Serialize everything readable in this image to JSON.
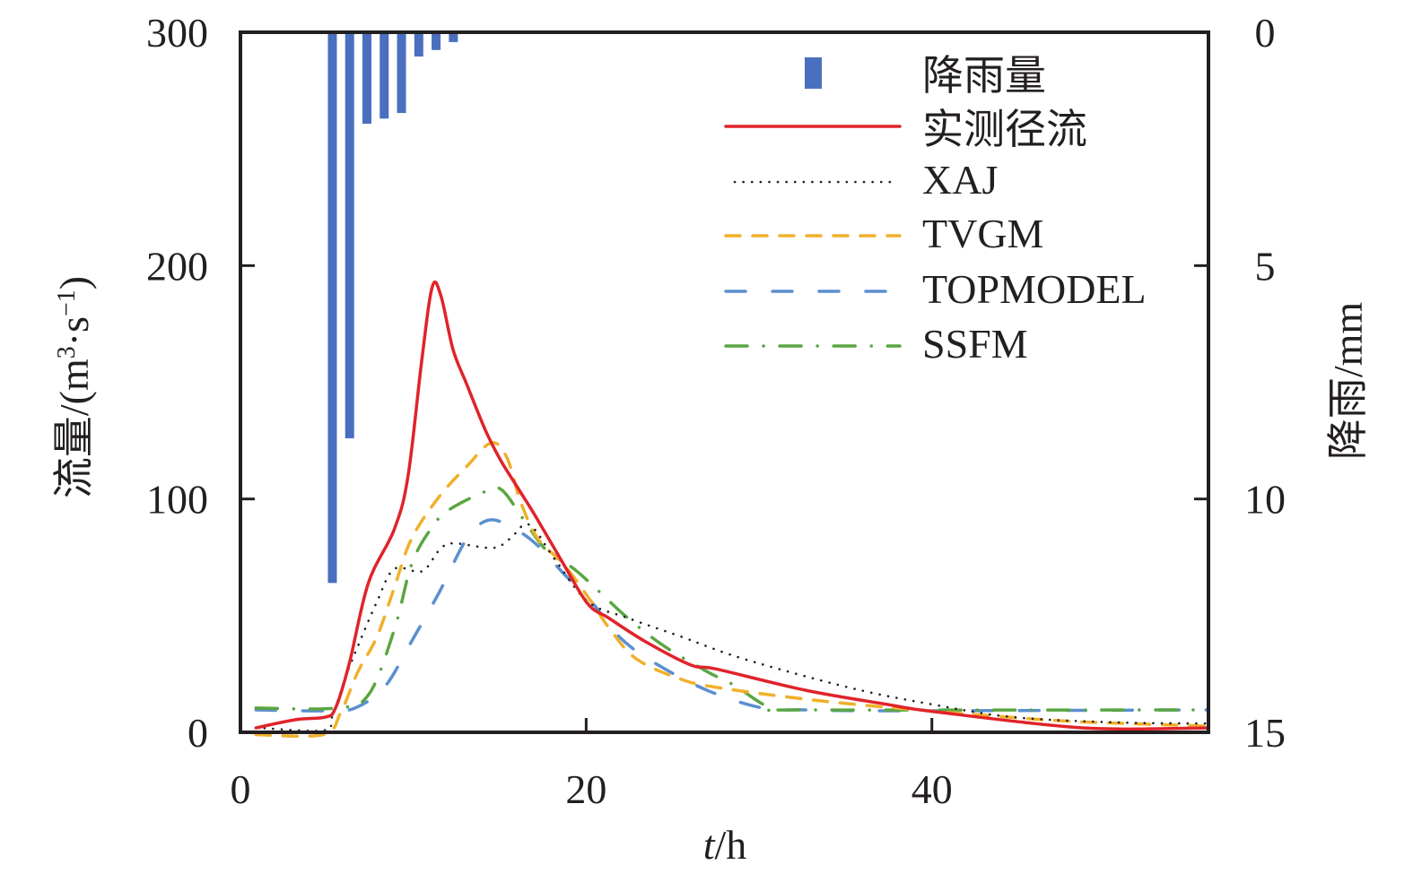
{
  "chart_data": {
    "type": "line",
    "title": "",
    "xlabel": "t/h",
    "xlabel_italic_part": "t",
    "xlabel_rest": "/h",
    "ylabel": "流量/(m3·s−1)",
    "ylabel_text": "流量/(m",
    "ylabel_sup1": "3",
    "ylabel_mid": "·s",
    "ylabel_sup2": "−1",
    "ylabel_close": ")",
    "y2label": "降雨/mm",
    "xlim": [
      0,
      56
    ],
    "ylim": [
      0,
      300
    ],
    "y2lim": [
      0,
      15
    ],
    "y2_inverted": true,
    "xticks": [
      "0",
      "20",
      "40"
    ],
    "xtick_values": [
      0,
      20,
      40
    ],
    "yticks": [
      "0",
      "100",
      "200",
      "300"
    ],
    "ytick_values": [
      0,
      100,
      200,
      300
    ],
    "y2ticks": [
      "0",
      "5",
      "10",
      "15"
    ],
    "y2tick_values": [
      0,
      5,
      10,
      15
    ],
    "grid": false,
    "legend_position": "top-right",
    "rainfall": {
      "name": "降雨量",
      "color": "#4a6fbf",
      "x": [
        5.5,
        6.5,
        7.5,
        8.5,
        9.5,
        10.5,
        11.5,
        12.5
      ],
      "values": [
        11.8,
        8.7,
        1.96,
        1.85,
        1.73,
        0.52,
        0.38,
        0.21
      ]
    },
    "series": [
      {
        "name": "实测径流",
        "color": "#e0232a",
        "style": "solid",
        "x": [
          0.9,
          3.2,
          4.9,
          5.5,
          6.3,
          7.4,
          8.9,
          9.7,
          10.5,
          11.1,
          11.6,
          12.3,
          13.1,
          14.2,
          15.1,
          16.2,
          17.2,
          18.7,
          20.1,
          21.3,
          23.4,
          26.0,
          27.6,
          32.7,
          37.4,
          40.0,
          48.8,
          55.9
        ],
        "values": [
          1.9,
          5.4,
          6.5,
          10.4,
          29.6,
          64,
          87,
          110,
          160,
          191,
          187,
          164,
          149,
          129,
          116,
          103,
          91,
          72,
          55,
          49,
          39,
          29,
          27,
          18,
          12,
          9,
          1.9,
          1.9
        ]
      },
      {
        "name": "XAJ",
        "color": "#231f20",
        "style": "dotted",
        "x": [
          0.9,
          4.8,
          5.3,
          6.1,
          6.8,
          7.9,
          8.9,
          10.5,
          11.5,
          12.3,
          14.6,
          15.6,
          16.7,
          18.2,
          20.1,
          22.4,
          25.5,
          29.1,
          35.3,
          40.0,
          44.7,
          50.9,
          55.9
        ],
        "values": [
          2,
          0.8,
          6.5,
          24,
          37,
          56,
          70,
          69,
          78,
          81,
          79,
          83,
          89,
          74,
          56,
          49,
          41,
          31.5,
          19,
          12,
          6.5,
          4.2,
          3.8
        ]
      },
      {
        "name": "TVGM",
        "color": "#f0b02a",
        "style": "dashed",
        "x": [
          0.9,
          4.8,
          5.8,
          6.8,
          7.9,
          8.9,
          9.9,
          11.5,
          13.1,
          14.5,
          15.4,
          16.2,
          17.2,
          18.7,
          20.3,
          21.3,
          22.9,
          25.5,
          27.6,
          32.7,
          37.9,
          43.1,
          48.3,
          55.9
        ],
        "values": [
          -1,
          -1,
          8.5,
          26,
          41,
          62,
          83,
          101,
          114,
          124,
          118,
          99,
          83,
          72,
          56,
          45,
          31.5,
          22.7,
          19.2,
          14.2,
          10.4,
          7.3,
          4.6,
          2.7
        ]
      },
      {
        "name": "TOPMODEL",
        "color": "#5b8fd0",
        "style": "long-dashed",
        "x": [
          0.9,
          5.3,
          6.8,
          8.4,
          9.9,
          11.5,
          13.1,
          14.4,
          15.9,
          17.2,
          18.7,
          20.3,
          21.9,
          23.9,
          27.0,
          30.2,
          32.7,
          37.9,
          55.9
        ],
        "values": [
          9.6,
          9.2,
          11,
          20,
          39,
          60,
          83,
          91,
          87,
          80,
          68,
          56,
          41,
          30,
          18,
          10.4,
          9.6,
          9.2,
          9.6
        ]
      },
      {
        "name": "SSFM",
        "color": "#5aa642",
        "style": "dash-dot",
        "x": [
          0.9,
          5.5,
          7.4,
          8.9,
          9.9,
          11.0,
          12.0,
          14.1,
          15.1,
          16.4,
          17.7,
          19.3,
          20.8,
          22.4,
          24.5,
          27.0,
          28.6,
          30.7,
          32.7,
          55.9
        ],
        "values": [
          10.4,
          10.4,
          16,
          44,
          72,
          87,
          95,
          103,
          104,
          91,
          78,
          70,
          60,
          49,
          37,
          26,
          20,
          10.4,
          9.6,
          9.6
        ]
      }
    ]
  }
}
